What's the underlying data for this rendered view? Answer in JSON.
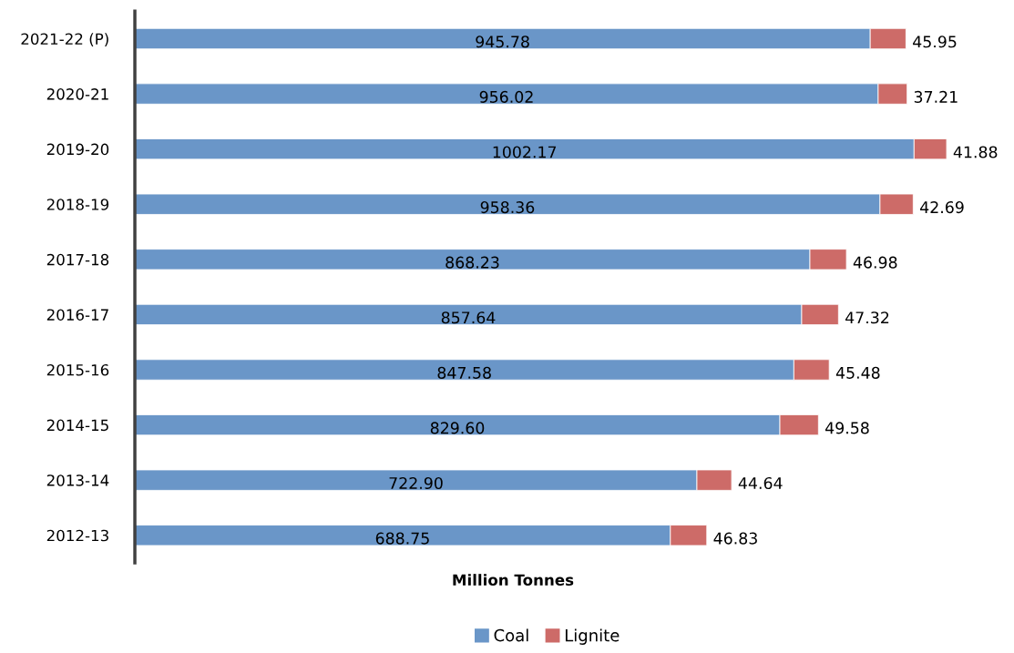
{
  "chart_data": {
    "type": "bar",
    "orientation": "horizontal",
    "stacked": true,
    "xlabel": "Million Tonnes",
    "categories": [
      "2021-22 (P)",
      "2020-21",
      "2019-20",
      "2018-19",
      "2017-18",
      "2016-17",
      "2015-16",
      "2014-15",
      "2013-14",
      "2012-13"
    ],
    "series": [
      {
        "name": "Coal",
        "color": "#6a96c8",
        "values": [
          945.78,
          956.02,
          1002.17,
          958.36,
          868.23,
          857.64,
          847.58,
          829.6,
          722.9,
          688.75
        ],
        "value_labels": [
          "945.78",
          "956.02",
          "1002.17",
          "958.36",
          "868.23",
          "857.64",
          "847.58",
          "829.60",
          "722.90",
          "688.75"
        ]
      },
      {
        "name": "Lignite",
        "color": "#cd6b68",
        "values": [
          45.95,
          37.21,
          41.88,
          42.69,
          46.98,
          47.32,
          45.48,
          49.58,
          44.64,
          46.83
        ],
        "value_labels": [
          "45.95",
          "37.21",
          "41.88",
          "42.69",
          "46.98",
          "47.32",
          "45.48",
          "49.58",
          "44.64",
          "46.83"
        ]
      }
    ],
    "tick_labels": "y",
    "grid": false,
    "legend": "bottom"
  }
}
